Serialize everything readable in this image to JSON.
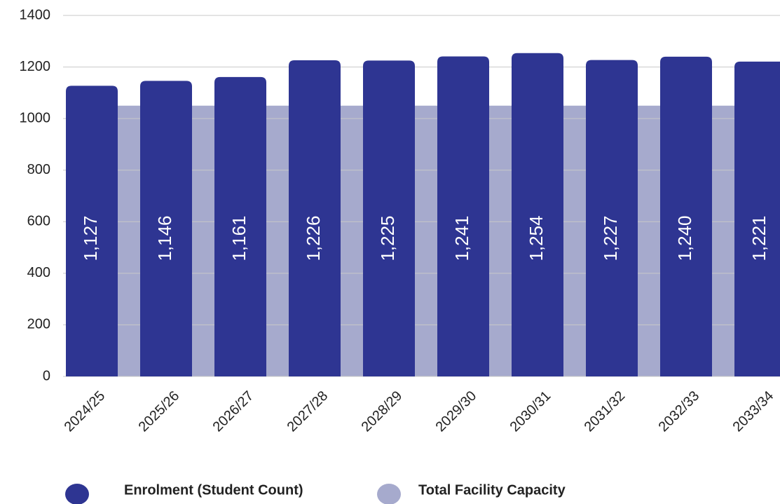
{
  "chart_data": {
    "type": "bar",
    "categories": [
      "2024/25",
      "2025/26",
      "2026/27",
      "2027/28",
      "2028/29",
      "2029/30",
      "2030/31",
      "2031/32",
      "2032/33",
      "2033/34"
    ],
    "series": [
      {
        "name": "Enrolment (Student Count)",
        "color": "#2e3592",
        "values": [
          1127,
          1146,
          1161,
          1226,
          1225,
          1241,
          1254,
          1227,
          1240,
          1221
        ],
        "value_labels": [
          "1,127",
          "1,146",
          "1,161",
          "1,226",
          "1,225",
          "1,241",
          "1,254",
          "1,227",
          "1,240",
          "1,221"
        ]
      },
      {
        "name": "Total Facility Capacity",
        "color": "#a6aacd",
        "type": "area",
        "values": [
          1050,
          1050,
          1050,
          1050,
          1050,
          1050,
          1050,
          1050,
          1050,
          1050
        ]
      }
    ],
    "ylim": [
      0,
      1400
    ],
    "yticks": [
      0,
      200,
      400,
      600,
      800,
      1000,
      1200,
      1400
    ],
    "grid": true
  }
}
